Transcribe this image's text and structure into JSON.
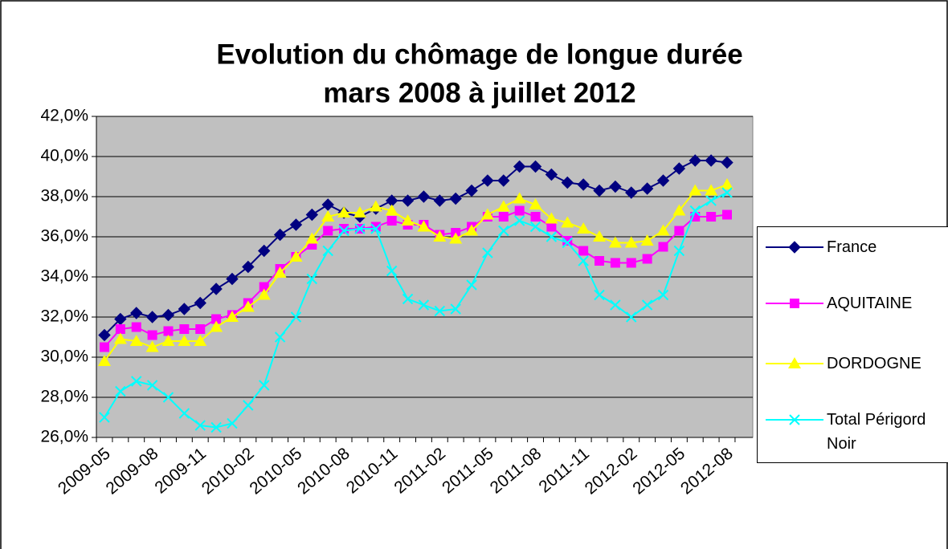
{
  "chart_data": {
    "type": "line",
    "title": "Evolution du chômage de longue durée",
    "subtitle": "mars 2008 à juillet 2012",
    "categories": [
      "2009-05",
      null,
      null,
      "2009-08",
      null,
      null,
      "2009-11",
      null,
      null,
      "2010-02",
      null,
      null,
      "2010-05",
      null,
      null,
      "2010-08",
      null,
      null,
      "2010-11",
      null,
      null,
      "2011-02",
      null,
      null,
      "2011-05",
      null,
      null,
      "2011-08",
      null,
      null,
      "2011-11",
      null,
      null,
      "2012-02",
      null,
      null,
      "2012-05",
      null,
      null,
      "2012-08"
    ],
    "series": [
      {
        "name": "France",
        "color": "#000080",
        "marker": "diamond",
        "values": [
          31.1,
          31.9,
          32.2,
          32.0,
          32.1,
          32.4,
          32.7,
          33.4,
          33.9,
          34.5,
          35.3,
          36.1,
          36.6,
          37.1,
          37.6,
          37.2,
          37.0,
          37.4,
          37.8,
          37.8,
          38.0,
          37.8,
          37.9,
          38.3,
          38.8,
          38.8,
          39.5,
          39.5,
          39.1,
          38.7,
          38.6,
          38.3,
          38.5,
          38.2,
          38.4,
          38.8,
          39.4,
          39.8,
          39.8,
          39.7
        ]
      },
      {
        "name": "AQUITAINE",
        "color": "#ff00ff",
        "marker": "square",
        "values": [
          30.5,
          31.4,
          31.5,
          31.1,
          31.3,
          31.4,
          31.4,
          31.9,
          32.1,
          32.7,
          33.5,
          34.4,
          35.0,
          35.6,
          36.3,
          36.4,
          36.4,
          36.5,
          36.8,
          36.6,
          36.6,
          36.1,
          36.2,
          36.5,
          37.0,
          37.0,
          37.3,
          37.0,
          36.5,
          35.8,
          35.3,
          34.8,
          34.7,
          34.7,
          34.9,
          35.5,
          36.3,
          37.0,
          37.0,
          37.1
        ]
      },
      {
        "name": "DORDOGNE",
        "color": "#ffff00",
        "marker": "triangle",
        "values": [
          29.8,
          30.9,
          30.8,
          30.5,
          30.8,
          30.8,
          30.8,
          31.5,
          32.0,
          32.5,
          33.1,
          34.2,
          35.0,
          35.9,
          37.0,
          37.2,
          37.2,
          37.5,
          37.3,
          36.8,
          36.5,
          36.0,
          35.9,
          36.3,
          37.1,
          37.5,
          37.9,
          37.6,
          36.9,
          36.7,
          36.4,
          36.0,
          35.7,
          35.7,
          35.8,
          36.3,
          37.3,
          38.3,
          38.3,
          38.6
        ]
      },
      {
        "name": "Total Périgord Noir",
        "color": "#00ffff",
        "marker": "x",
        "values": [
          27.0,
          28.3,
          28.8,
          28.6,
          28.0,
          27.2,
          26.6,
          26.5,
          26.7,
          27.6,
          28.6,
          31.0,
          32.0,
          33.9,
          35.3,
          36.3,
          36.4,
          36.4,
          34.3,
          32.9,
          32.6,
          32.3,
          32.4,
          33.6,
          35.2,
          36.3,
          36.8,
          36.5,
          36.0,
          35.7,
          34.8,
          33.1,
          32.6,
          32.0,
          32.6,
          33.1,
          35.3,
          37.3,
          37.8,
          38.2
        ]
      }
    ],
    "ylim": [
      26,
      42
    ],
    "yticks": [
      {
        "value": 26,
        "label": "26,0%"
      },
      {
        "value": 28,
        "label": "28,0%"
      },
      {
        "value": 30,
        "label": "30,0%"
      },
      {
        "value": 32,
        "label": "32,0%"
      },
      {
        "value": 34,
        "label": "34,0%"
      },
      {
        "value": 36,
        "label": "36,0%"
      },
      {
        "value": 38,
        "label": "38,0%"
      },
      {
        "value": 40,
        "label": "40,0%"
      },
      {
        "value": 42,
        "label": "42,0%"
      }
    ],
    "grid": true,
    "plot_background": "#c0c0c0",
    "legend": "right"
  }
}
